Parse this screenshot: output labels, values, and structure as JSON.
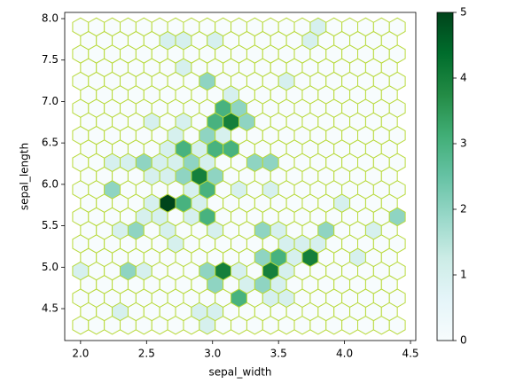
{
  "chart_data": {
    "type": "hexbin",
    "xlabel": "sepal_width",
    "ylabel": "sepal_length",
    "xlim": [
      1.88,
      4.54
    ],
    "ylim": [
      4.115,
      8.075
    ],
    "xticks": [
      {
        "value": 2,
        "label": "2.0"
      },
      2.5,
      {
        "value": 3,
        "label": "3.0"
      },
      3.5,
      {
        "value": 4,
        "label": "4.0"
      },
      4.5
    ],
    "yticks": [
      4.5,
      {
        "value": 5,
        "label": "5.0"
      },
      5.5,
      {
        "value": 6,
        "label": "6.0"
      },
      6.5,
      {
        "value": 7,
        "label": "7.0"
      },
      7.5,
      {
        "value": 8,
        "label": "8.0"
      }
    ],
    "edgecolor": "#b8d93a",
    "colormap": [
      "#f7fcfd",
      "#e5f5f9",
      "#ccece6",
      "#99d8c9",
      "#66c2a4",
      "#41ae76",
      "#238b45",
      "#006d2c",
      "#00441b"
    ],
    "colorbar": {
      "lim": [
        0,
        5
      ],
      "ticks": [
        0,
        1,
        2,
        3,
        4,
        5
      ]
    },
    "rows": [
      {
        "y": 4.3,
        "x": [
          2.0,
          2.12,
          2.24,
          2.36,
          2.48,
          2.6,
          2.72,
          2.84,
          2.96,
          3.08,
          3.2,
          3.32,
          3.44,
          3.56,
          3.68,
          3.8,
          3.92,
          4.04,
          4.16,
          4.28,
          4.4
        ],
        "counts": [
          0,
          0,
          0,
          0,
          0,
          0,
          0,
          0,
          1,
          0,
          0,
          0,
          0,
          0,
          0,
          0,
          0,
          0,
          0,
          0,
          0
        ]
      },
      {
        "y": 4.464,
        "x": [
          2.06,
          2.18,
          2.3,
          2.42,
          2.54,
          2.66,
          2.78,
          2.9,
          3.02,
          3.14,
          3.26,
          3.38,
          3.5,
          3.62,
          3.74,
          3.86,
          3.98,
          4.1,
          4.22,
          4.34
        ],
        "counts": [
          0,
          0,
          1,
          0,
          0,
          0,
          0,
          1,
          1,
          0,
          0,
          0,
          0,
          0,
          0,
          0,
          0,
          0,
          0,
          0
        ]
      },
      {
        "y": 4.627,
        "x": [
          2.0,
          2.12,
          2.24,
          2.36,
          2.48,
          2.6,
          2.72,
          2.84,
          2.96,
          3.08,
          3.2,
          3.32,
          3.44,
          3.56,
          3.68,
          3.8,
          3.92,
          4.04,
          4.16,
          4.28,
          4.4
        ],
        "counts": [
          0,
          0,
          0,
          0,
          0,
          0,
          0,
          0,
          0,
          0,
          3,
          0,
          1,
          1,
          0,
          0,
          0,
          0,
          0,
          0,
          0
        ]
      },
      {
        "y": 4.791,
        "x": [
          2.06,
          2.18,
          2.3,
          2.42,
          2.54,
          2.66,
          2.78,
          2.9,
          3.02,
          3.14,
          3.26,
          3.38,
          3.5,
          3.62,
          3.74,
          3.86,
          3.98,
          4.1,
          4.22,
          4.34
        ],
        "counts": [
          0,
          0,
          0,
          0,
          0,
          0,
          0,
          0,
          2,
          0,
          1,
          2,
          1,
          0,
          0,
          0,
          0,
          0,
          0,
          0
        ]
      },
      {
        "y": 4.955,
        "x": [
          2.0,
          2.12,
          2.24,
          2.36,
          2.48,
          2.6,
          2.72,
          2.84,
          2.96,
          3.08,
          3.2,
          3.32,
          3.44,
          3.56,
          3.68,
          3.8,
          3.92,
          4.04,
          4.16,
          4.28,
          4.4
        ],
        "counts": [
          1,
          0,
          0,
          2,
          1,
          0,
          0,
          0,
          2,
          4,
          1,
          0,
          4,
          1,
          0,
          0,
          0,
          0,
          0,
          0,
          0
        ]
      },
      {
        "y": 5.118,
        "x": [
          2.06,
          2.18,
          2.3,
          2.42,
          2.54,
          2.66,
          2.78,
          2.9,
          3.02,
          3.14,
          3.26,
          3.38,
          3.5,
          3.62,
          3.74,
          3.86,
          3.98,
          4.1,
          4.22,
          4.34
        ],
        "counts": [
          0,
          0,
          0,
          0,
          0,
          0,
          0,
          0,
          0,
          0,
          0,
          2,
          3,
          1,
          4,
          0,
          0,
          1,
          0,
          0
        ]
      },
      {
        "y": 5.282,
        "x": [
          2.0,
          2.12,
          2.24,
          2.36,
          2.48,
          2.6,
          2.72,
          2.84,
          2.96,
          3.08,
          3.2,
          3.32,
          3.44,
          3.56,
          3.68,
          3.8,
          3.92,
          4.04,
          4.16,
          4.28,
          4.4
        ],
        "counts": [
          0,
          0,
          0,
          0,
          0,
          0,
          1,
          0,
          0,
          0,
          0,
          0,
          0,
          1,
          1,
          1,
          0,
          0,
          0,
          0,
          0
        ]
      },
      {
        "y": 5.445,
        "x": [
          2.06,
          2.18,
          2.3,
          2.42,
          2.54,
          2.66,
          2.78,
          2.9,
          3.02,
          3.14,
          3.26,
          3.38,
          3.5,
          3.62,
          3.74,
          3.86,
          3.98,
          4.1,
          4.22,
          4.34
        ],
        "counts": [
          0,
          0,
          1,
          2,
          0,
          1,
          0,
          0,
          1,
          0,
          0,
          2,
          1,
          0,
          0,
          2,
          0,
          0,
          1,
          0
        ]
      },
      {
        "y": 5.609,
        "x": [
          2.0,
          2.12,
          2.24,
          2.36,
          2.48,
          2.6,
          2.72,
          2.84,
          2.96,
          3.08,
          3.2,
          3.32,
          3.44,
          3.56,
          3.68,
          3.8,
          3.92,
          4.04,
          4.16,
          4.28,
          4.4
        ],
        "counts": [
          0,
          0,
          0,
          0,
          1,
          1,
          0,
          1,
          3,
          0,
          0,
          0,
          0,
          0,
          0,
          0,
          0,
          0,
          0,
          0,
          2
        ]
      },
      {
        "y": 5.773,
        "x": [
          2.06,
          2.18,
          2.3,
          2.42,
          2.54,
          2.66,
          2.78,
          2.9,
          3.02,
          3.14,
          3.26,
          3.38,
          3.5,
          3.62,
          3.74,
          3.86,
          3.98,
          4.1,
          4.22,
          4.34
        ],
        "counts": [
          0,
          0,
          0,
          0,
          1,
          5,
          3,
          1,
          0,
          0,
          0,
          0,
          0,
          0,
          0,
          0,
          1,
          0,
          0,
          0
        ]
      },
      {
        "y": 5.936,
        "x": [
          2.0,
          2.12,
          2.24,
          2.36,
          2.48,
          2.6,
          2.72,
          2.84,
          2.96,
          3.08,
          3.2,
          3.32,
          3.44,
          3.56,
          3.68,
          3.8,
          3.92,
          4.04,
          4.16,
          4.28,
          4.4
        ],
        "counts": [
          0,
          0,
          2,
          0,
          0,
          0,
          0,
          1,
          3,
          0,
          1,
          0,
          1,
          0,
          0,
          0,
          0,
          0,
          0,
          0,
          0
        ]
      },
      {
        "y": 6.1,
        "x": [
          2.06,
          2.18,
          2.3,
          2.42,
          2.54,
          2.66,
          2.78,
          2.9,
          3.02,
          3.14,
          3.26,
          3.38,
          3.5,
          3.62,
          3.74,
          3.86,
          3.98,
          4.1,
          4.22,
          4.34
        ],
        "counts": [
          0,
          0,
          0,
          0,
          1,
          1,
          2,
          4,
          2,
          0,
          0,
          0,
          0,
          0,
          0,
          0,
          0,
          0,
          0,
          0
        ]
      },
      {
        "y": 6.264,
        "x": [
          2.0,
          2.12,
          2.24,
          2.36,
          2.48,
          2.6,
          2.72,
          2.84,
          2.96,
          3.08,
          3.2,
          3.32,
          3.44,
          3.56,
          3.68,
          3.8,
          3.92,
          4.04,
          4.16,
          4.28,
          4.4
        ],
        "counts": [
          0,
          0,
          1,
          1,
          2,
          1,
          1,
          2,
          1,
          0,
          0,
          2,
          2,
          0,
          0,
          0,
          0,
          0,
          0,
          0,
          0
        ]
      },
      {
        "y": 6.427,
        "x": [
          2.06,
          2.18,
          2.3,
          2.42,
          2.54,
          2.66,
          2.78,
          2.9,
          3.02,
          3.14,
          3.26,
          3.38,
          3.5,
          3.62,
          3.74,
          3.86,
          3.98,
          4.1,
          4.22,
          4.34
        ],
        "counts": [
          0,
          0,
          0,
          0,
          0,
          1,
          3,
          1,
          3,
          3,
          0,
          0,
          0,
          0,
          0,
          0,
          0,
          0,
          0,
          0
        ]
      },
      {
        "y": 6.591,
        "x": [
          2.0,
          2.12,
          2.24,
          2.36,
          2.48,
          2.6,
          2.72,
          2.84,
          2.96,
          3.08,
          3.2,
          3.32,
          3.44,
          3.56,
          3.68,
          3.8,
          3.92,
          4.04,
          4.16,
          4.28,
          4.4
        ],
        "counts": [
          0,
          0,
          0,
          0,
          0,
          0,
          1,
          0,
          2,
          1,
          0,
          0,
          0,
          0,
          0,
          0,
          0,
          0,
          0,
          0,
          0
        ]
      },
      {
        "y": 6.755,
        "x": [
          2.06,
          2.18,
          2.3,
          2.42,
          2.54,
          2.66,
          2.78,
          2.9,
          3.02,
          3.14,
          3.26,
          3.38,
          3.5,
          3.62,
          3.74,
          3.86,
          3.98,
          4.1,
          4.22,
          4.34
        ],
        "counts": [
          0,
          0,
          0,
          0,
          1,
          0,
          1,
          0,
          3,
          4,
          2,
          0,
          0,
          0,
          0,
          0,
          0,
          0,
          0,
          0
        ]
      },
      {
        "y": 6.918,
        "x": [
          2.0,
          2.12,
          2.24,
          2.36,
          2.48,
          2.6,
          2.72,
          2.84,
          2.96,
          3.08,
          3.2,
          3.32,
          3.44,
          3.56,
          3.68,
          3.8,
          3.92,
          4.04,
          4.16,
          4.28,
          4.4
        ],
        "counts": [
          0,
          0,
          0,
          0,
          0,
          0,
          0,
          0,
          0,
          3,
          2,
          0,
          0,
          0,
          0,
          0,
          0,
          0,
          0,
          0,
          0
        ]
      },
      {
        "y": 7.082,
        "x": [
          2.06,
          2.18,
          2.3,
          2.42,
          2.54,
          2.66,
          2.78,
          2.9,
          3.02,
          3.14,
          3.26,
          3.38,
          3.5,
          3.62,
          3.74,
          3.86,
          3.98,
          4.1,
          4.22,
          4.34
        ],
        "counts": [
          0,
          0,
          0,
          0,
          0,
          0,
          0,
          0,
          0,
          1,
          0,
          0,
          0,
          0,
          0,
          0,
          0,
          0,
          0,
          0
        ]
      },
      {
        "y": 7.245,
        "x": [
          2.0,
          2.12,
          2.24,
          2.36,
          2.48,
          2.6,
          2.72,
          2.84,
          2.96,
          3.08,
          3.2,
          3.32,
          3.44,
          3.56,
          3.68,
          3.8,
          3.92,
          4.04,
          4.16,
          4.28,
          4.4
        ],
        "counts": [
          0,
          0,
          0,
          0,
          0,
          0,
          0,
          0,
          2,
          0,
          0,
          0,
          0,
          1,
          0,
          0,
          0,
          0,
          0,
          0,
          0
        ]
      },
      {
        "y": 7.409,
        "x": [
          2.06,
          2.18,
          2.3,
          2.42,
          2.54,
          2.66,
          2.78,
          2.9,
          3.02,
          3.14,
          3.26,
          3.38,
          3.5,
          3.62,
          3.74,
          3.86,
          3.98,
          4.1,
          4.22,
          4.34
        ],
        "counts": [
          0,
          0,
          0,
          0,
          0,
          0,
          1,
          0,
          0,
          0,
          0,
          0,
          0,
          0,
          0,
          0,
          0,
          0,
          0,
          0
        ]
      },
      {
        "y": 7.573,
        "x": [
          2.0,
          2.12,
          2.24,
          2.36,
          2.48,
          2.6,
          2.72,
          2.84,
          2.96,
          3.08,
          3.2,
          3.32,
          3.44,
          3.56,
          3.68,
          3.8,
          3.92,
          4.04,
          4.16,
          4.28,
          4.4
        ],
        "counts": [
          0,
          0,
          0,
          0,
          0,
          0,
          0,
          0,
          0,
          0,
          0,
          0,
          0,
          0,
          0,
          0,
          0,
          0,
          0,
          0,
          0
        ]
      },
      {
        "y": 7.736,
        "x": [
          2.06,
          2.18,
          2.3,
          2.42,
          2.54,
          2.66,
          2.78,
          2.9,
          3.02,
          3.14,
          3.26,
          3.38,
          3.5,
          3.62,
          3.74,
          3.86,
          3.98,
          4.1,
          4.22,
          4.34
        ],
        "counts": [
          0,
          0,
          0,
          0,
          0,
          1,
          1,
          0,
          1,
          0,
          0,
          0,
          0,
          0,
          1,
          0,
          0,
          0,
          0,
          0
        ]
      },
      {
        "y": 7.9,
        "x": [
          2.0,
          2.12,
          2.24,
          2.36,
          2.48,
          2.6,
          2.72,
          2.84,
          2.96,
          3.08,
          3.2,
          3.32,
          3.44,
          3.56,
          3.68,
          3.8,
          3.92,
          4.04,
          4.16,
          4.28,
          4.4
        ],
        "counts": [
          0,
          0,
          0,
          0,
          0,
          0,
          0,
          0,
          0,
          0,
          0,
          0,
          0,
          0,
          0,
          1,
          0,
          0,
          0,
          0,
          0
        ]
      }
    ]
  }
}
